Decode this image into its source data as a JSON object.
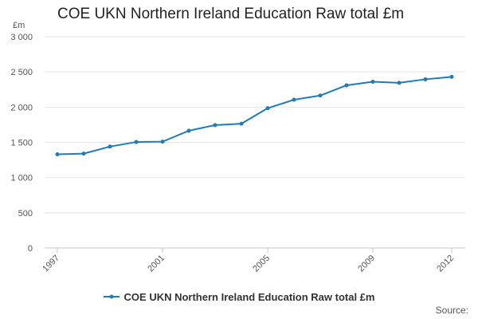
{
  "chart_data": {
    "type": "line",
    "title": "COE UKN Northern Ireland Education Raw total £m",
    "y_unit": "£m",
    "xlabel": "",
    "ylabel": "",
    "x": [
      1997,
      1998,
      1999,
      2000,
      2001,
      2002,
      2003,
      2004,
      2005,
      2006,
      2007,
      2008,
      2009,
      2010,
      2011,
      2012
    ],
    "x_tick_labels": [
      "1997",
      "2001",
      "2005",
      "2009",
      "2012"
    ],
    "y_tick_labels": [
      "0",
      "500",
      "1 000",
      "1 500",
      "2 000",
      "2 500",
      "3 000"
    ],
    "ylim": [
      0,
      3000
    ],
    "xlim": [
      1997,
      2012
    ],
    "grid": true,
    "legend_position": "bottom",
    "series": [
      {
        "name": "COE UKN Northern Ireland Education Raw total £m",
        "color": "#1f7cb8",
        "values": [
          1330,
          1340,
          1440,
          1505,
          1510,
          1665,
          1745,
          1765,
          1985,
          2105,
          2165,
          2310,
          2360,
          2345,
          2395,
          2430
        ]
      }
    ],
    "source_label": "Source:"
  }
}
